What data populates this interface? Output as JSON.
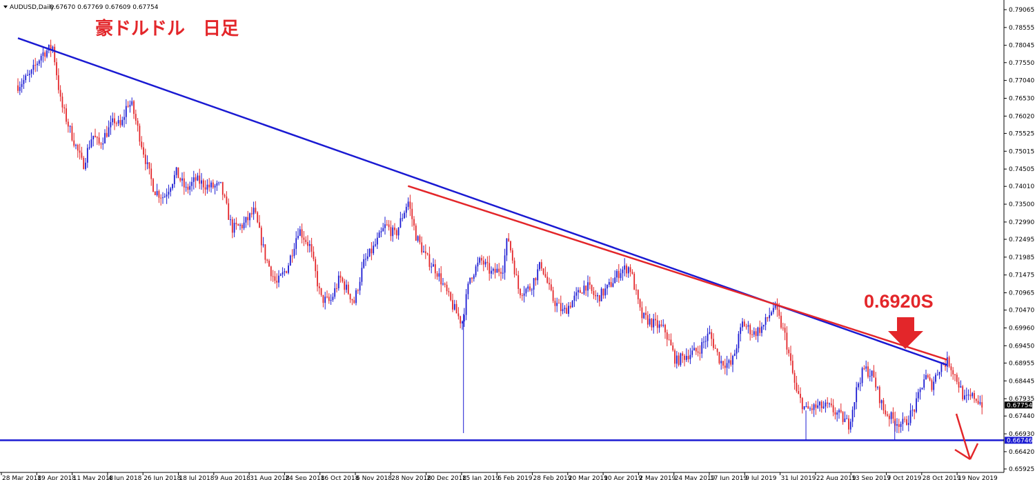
{
  "header": {
    "symbol_label": "AUDUSD,Daily",
    "ohlc": "0.67670 0.67769 0.67609 0.67754"
  },
  "title": "豪ドルドル　日足",
  "annotation": {
    "label": "0.6920S",
    "value": 0.692
  },
  "colors": {
    "bull": "#1a1ad2",
    "bear": "#e3262a",
    "blue_line": "#1a1ad2",
    "red_line": "#e3262a",
    "support": "#1a1ad2",
    "axis": "#000000"
  },
  "chart_data": {
    "type": "candlestick",
    "symbol": "AUDUSD",
    "timeframe": "Daily",
    "ylim": [
      0.6591,
      0.7911
    ],
    "y_ticks": [
      "0.79065",
      "0.78555",
      "0.78045",
      "0.77550",
      "0.77040",
      "0.76530",
      "0.76020",
      "0.75525",
      "0.75015",
      "0.74505",
      "0.74010",
      "0.73500",
      "0.72990",
      "0.72495",
      "0.71985",
      "0.71475",
      "0.70965",
      "0.70470",
      "0.69960",
      "0.69450",
      "0.68955",
      "0.68445",
      "0.67935",
      "0.67440",
      "0.66930",
      "0.66420",
      "0.65925"
    ],
    "x_ticks": [
      "28 Mar 2018",
      "19 Apr 2018",
      "11 May 2018",
      "4 Jun 2018",
      "26 Jun 2018",
      "18 Jul 2018",
      "9 Aug 2018",
      "31 Aug 2018",
      "24 Sep 2018",
      "16 Oct 2018",
      "6 Nov 2018",
      "28 Nov 2018",
      "20 Dec 2018",
      "15 Jan 2019",
      "6 Feb 2019",
      "28 Feb 2019",
      "20 Mar 2019",
      "10 Apr 2019",
      "2 May 2019",
      "24 May 2019",
      "17 Jun 2019",
      "9 Jul 2019",
      "31 Jul 2019",
      "22 Aug 2019",
      "13 Sep 2019",
      "7 Oct 2019",
      "28 Oct 2019",
      "19 Nov 2019"
    ],
    "current_price": {
      "label": "0.67754",
      "value": 0.67754
    },
    "support_price": {
      "label": "0.66746",
      "value": 0.66746
    },
    "trendlines": [
      {
        "name": "blue-trendline",
        "start": [
          "2018-03-28",
          0.7825
        ],
        "end": [
          "2019-11-04",
          0.689
        ]
      },
      {
        "name": "red-trendline",
        "start": [
          "2018-11-29",
          0.7402
        ],
        "end": [
          "2019-11-04",
          0.6905
        ]
      }
    ],
    "price_path": [
      [
        "2018-03-28",
        0.769
      ],
      [
        "2018-04-05",
        0.772
      ],
      [
        "2018-04-12",
        0.778
      ],
      [
        "2018-04-19",
        0.78
      ],
      [
        "2018-04-24",
        0.764
      ],
      [
        "2018-04-30",
        0.756
      ],
      [
        "2018-05-08",
        0.746
      ],
      [
        "2018-05-14",
        0.755
      ],
      [
        "2018-05-18",
        0.752
      ],
      [
        "2018-05-28",
        0.759
      ],
      [
        "2018-06-01",
        0.757
      ],
      [
        "2018-06-05",
        0.764
      ],
      [
        "2018-06-08",
        0.763
      ],
      [
        "2018-06-18",
        0.745
      ],
      [
        "2018-06-22",
        0.739
      ],
      [
        "2018-06-28",
        0.737
      ],
      [
        "2018-07-06",
        0.744
      ],
      [
        "2018-07-12",
        0.739
      ],
      [
        "2018-07-18",
        0.742
      ],
      [
        "2018-07-26",
        0.74
      ],
      [
        "2018-08-03",
        0.74
      ],
      [
        "2018-08-10",
        0.728
      ],
      [
        "2018-08-17",
        0.729
      ],
      [
        "2018-08-24",
        0.733
      ],
      [
        "2018-08-31",
        0.72
      ],
      [
        "2018-09-07",
        0.712
      ],
      [
        "2018-09-14",
        0.717
      ],
      [
        "2018-09-21",
        0.728
      ],
      [
        "2018-09-28",
        0.723
      ],
      [
        "2018-10-05",
        0.708
      ],
      [
        "2018-10-11",
        0.707
      ],
      [
        "2018-10-17",
        0.714
      ],
      [
        "2018-10-26",
        0.707
      ],
      [
        "2018-11-01",
        0.718
      ],
      [
        "2018-11-08",
        0.723
      ],
      [
        "2018-11-15",
        0.729
      ],
      [
        "2018-11-21",
        0.726
      ],
      [
        "2018-11-29",
        0.736
      ],
      [
        "2018-12-04",
        0.726
      ],
      [
        "2018-12-10",
        0.72
      ],
      [
        "2018-12-17",
        0.716
      ],
      [
        "2018-12-27",
        0.706
      ],
      [
        "2019-01-02",
        0.701
      ],
      [
        "2019-01-07",
        0.714
      ],
      [
        "2019-01-14",
        0.719
      ],
      [
        "2019-01-21",
        0.715
      ],
      [
        "2019-01-28",
        0.717
      ],
      [
        "2019-01-31",
        0.726
      ],
      [
        "2019-02-07",
        0.71
      ],
      [
        "2019-02-14",
        0.711
      ],
      [
        "2019-02-21",
        0.718
      ],
      [
        "2019-02-28",
        0.708
      ],
      [
        "2019-03-07",
        0.704
      ],
      [
        "2019-03-14",
        0.708
      ],
      [
        "2019-03-21",
        0.712
      ],
      [
        "2019-03-28",
        0.708
      ],
      [
        "2019-04-04",
        0.711
      ],
      [
        "2019-04-12",
        0.716
      ],
      [
        "2019-04-18",
        0.717
      ],
      [
        "2019-04-25",
        0.703
      ],
      [
        "2019-05-02",
        0.701
      ],
      [
        "2019-05-10",
        0.699
      ],
      [
        "2019-05-17",
        0.69
      ],
      [
        "2019-05-24",
        0.692
      ],
      [
        "2019-05-31",
        0.693
      ],
      [
        "2019-06-07",
        0.698
      ],
      [
        "2019-06-14",
        0.69
      ],
      [
        "2019-06-21",
        0.689
      ],
      [
        "2019-06-28",
        0.701
      ],
      [
        "2019-07-05",
        0.698
      ],
      [
        "2019-07-11",
        0.7
      ],
      [
        "2019-07-18",
        0.706
      ],
      [
        "2019-07-25",
        0.697
      ],
      [
        "2019-08-01",
        0.681
      ],
      [
        "2019-08-07",
        0.676
      ],
      [
        "2019-08-14",
        0.677
      ],
      [
        "2019-08-21",
        0.677
      ],
      [
        "2019-08-27",
        0.675
      ],
      [
        "2019-09-03",
        0.672
      ],
      [
        "2019-09-09",
        0.684
      ],
      [
        "2019-09-13",
        0.688
      ],
      [
        "2019-09-18",
        0.686
      ],
      [
        "2019-09-25",
        0.676
      ],
      [
        "2019-10-02",
        0.673
      ],
      [
        "2019-10-08",
        0.672
      ],
      [
        "2019-10-15",
        0.677
      ],
      [
        "2019-10-21",
        0.686
      ],
      [
        "2019-10-25",
        0.683
      ],
      [
        "2019-10-31",
        0.689
      ],
      [
        "2019-11-05",
        0.69
      ],
      [
        "2019-11-11",
        0.684
      ],
      [
        "2019-11-15",
        0.679
      ],
      [
        "2019-11-21",
        0.68
      ],
      [
        "2019-11-27",
        0.6775
      ]
    ],
    "extreme_wicks": [
      {
        "date": "2019-01-03",
        "low": 0.6695
      },
      {
        "date": "2019-08-07",
        "low": 0.6675
      },
      {
        "date": "2019-10-02",
        "low": 0.6675
      }
    ]
  }
}
